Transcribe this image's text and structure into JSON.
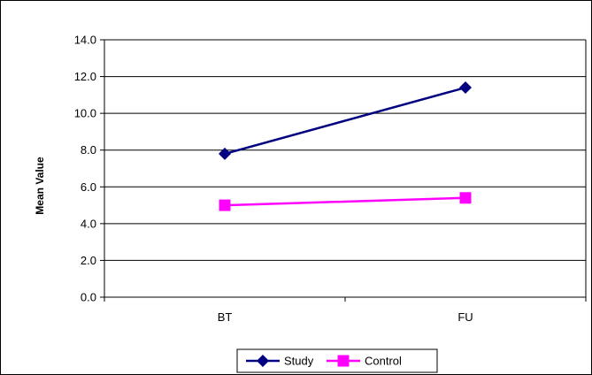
{
  "chart_data": {
    "type": "line",
    "title": "",
    "xlabel": "",
    "ylabel": "Mean Value",
    "categories": [
      "BT",
      "FU"
    ],
    "ylim": [
      0,
      14
    ],
    "yticks": [
      "0.0",
      "2.0",
      "4.0",
      "6.0",
      "8.0",
      "10.0",
      "12.0",
      "14.0"
    ],
    "grid": "horizontal",
    "legend_position": "bottom",
    "series": [
      {
        "name": "Study",
        "values": [
          7.8,
          11.4
        ],
        "color": "#000080",
        "marker": "diamond"
      },
      {
        "name": "Control",
        "values": [
          5.0,
          5.4
        ],
        "color": "#ff00ff",
        "marker": "square"
      }
    ]
  }
}
